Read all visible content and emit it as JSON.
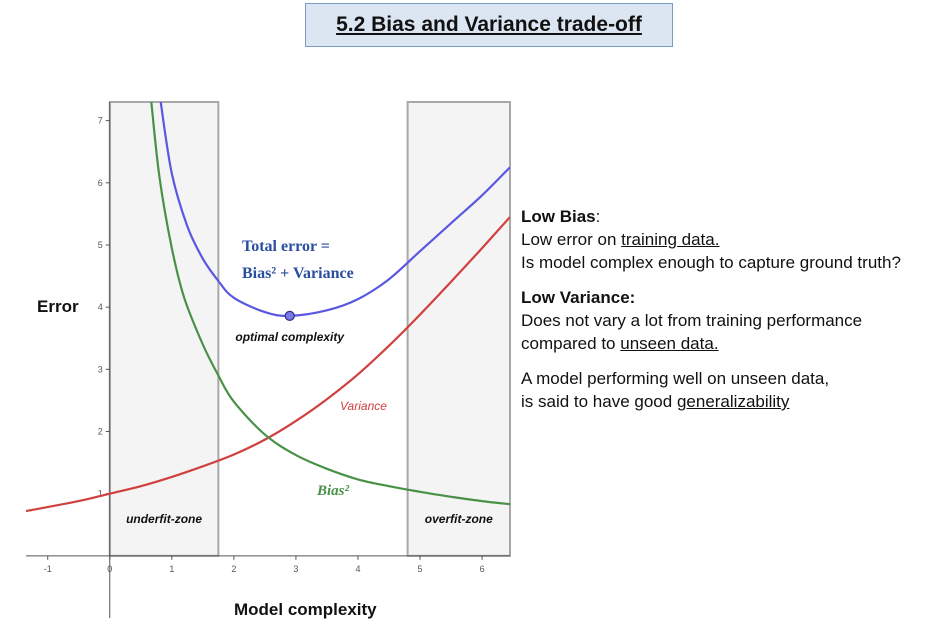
{
  "title": "5.2 Bias and Variance trade-off",
  "chart_data": {
    "type": "line",
    "xlabel": "Model complexity",
    "ylabel": "Error",
    "xlim": [
      -1.35,
      6.45
    ],
    "ylim": [
      -1.0,
      7.3
    ],
    "x_ticks": [
      -1,
      0,
      1,
      2,
      3,
      4,
      5,
      6
    ],
    "y_ticks": [
      1,
      2,
      3,
      4,
      5,
      6,
      7
    ],
    "x_tick_labels": [
      "-1",
      "0",
      "1",
      "2",
      "3",
      "4",
      "5",
      "6"
    ],
    "y_tick_labels": [
      "1",
      "2",
      "3",
      "4",
      "5",
      "6",
      "7"
    ],
    "grid": false,
    "series": [
      {
        "name": "Variance",
        "color": "#d0403f",
        "x": [
          -1.35,
          -0.5,
          0,
          0.5,
          1,
          1.5,
          2,
          2.5,
          3,
          3.5,
          4,
          4.5,
          5,
          5.5,
          6,
          6.45
        ],
        "y": [
          0.72,
          0.88,
          1.0,
          1.12,
          1.27,
          1.44,
          1.63,
          1.87,
          2.17,
          2.52,
          2.92,
          3.38,
          3.88,
          4.41,
          4.95,
          5.45
        ]
      },
      {
        "name": "Bias²",
        "color": "#4a9148",
        "x": [
          0.67,
          0.8,
          1.0,
          1.2,
          1.5,
          1.75,
          2,
          2.5,
          3,
          3.5,
          4,
          4.5,
          5,
          5.5,
          6,
          6.45
        ],
        "y": [
          7.3,
          6.1,
          4.95,
          4.15,
          3.4,
          2.9,
          2.48,
          1.95,
          1.62,
          1.4,
          1.23,
          1.12,
          1.03,
          0.95,
          0.88,
          0.83
        ]
      },
      {
        "name": "Total error = Bias² + Variance",
        "color": "#5a58e0",
        "x": [
          0.82,
          1.0,
          1.25,
          1.5,
          1.75,
          2,
          2.5,
          2.9,
          3.5,
          4,
          4.5,
          5,
          5.5,
          6,
          6.45
        ],
        "y": [
          7.3,
          6.15,
          5.3,
          4.78,
          4.42,
          4.15,
          3.92,
          3.86,
          3.95,
          4.13,
          4.45,
          4.9,
          5.35,
          5.8,
          6.25
        ]
      }
    ],
    "optimal_point": {
      "x": 2.9,
      "y": 3.86,
      "label": "optimal complexity"
    },
    "zones": [
      {
        "label": "underfit-zone",
        "x0": 0,
        "x1": 1.75
      },
      {
        "label": "overfit-zone",
        "x0": 4.8,
        "x1": 6.45
      }
    ],
    "annotations": {
      "total_line1": "Total error =",
      "total_line2": "Bias² + Variance",
      "variance": "Variance",
      "bias": "Bias²"
    }
  },
  "notes": {
    "low_bias_heading": "Low Bias",
    "colon": ":",
    "low_bias_line1_prefix": "Low error on ",
    "low_bias_line1_link": "training data.",
    "low_bias_line2": "Is model complex enough to capture ground truth?",
    "low_variance_heading": "Low Variance:",
    "low_variance_line1": "Does not vary a lot from training performance",
    "low_variance_line2_prefix": "compared to ",
    "low_variance_line2_link": "unseen data.",
    "general_line1": "A model performing well on unseen data,",
    "general_line2_prefix": "is said to have good ",
    "general_line2_link": "generalizability"
  }
}
